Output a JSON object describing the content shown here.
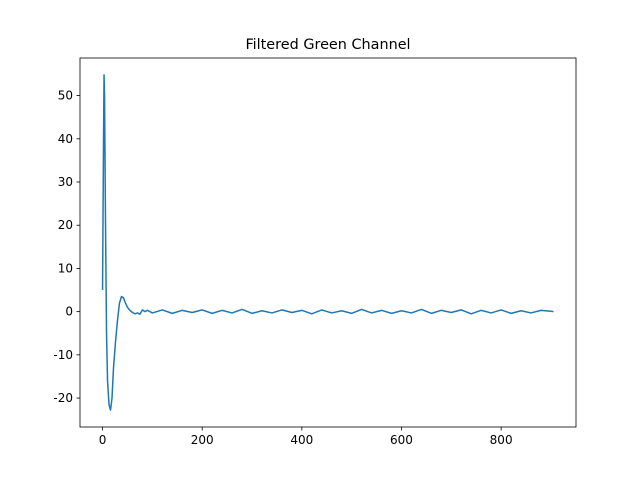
{
  "chart_data": {
    "type": "line",
    "title": "Filtered Green Channel",
    "series": [
      {
        "color": "#1f77b4",
        "x": [
          0,
          2,
          3,
          4,
          6,
          8,
          10,
          13,
          16,
          19,
          22,
          26,
          30,
          34,
          38,
          42,
          46,
          50,
          55,
          60,
          65,
          70,
          75,
          80,
          85,
          90,
          100,
          120,
          140,
          160,
          180,
          200,
          220,
          240,
          260,
          280,
          300,
          320,
          340,
          360,
          380,
          400,
          420,
          440,
          460,
          480,
          500,
          520,
          540,
          560,
          580,
          600,
          620,
          640,
          660,
          680,
          700,
          720,
          740,
          760,
          780,
          800,
          820,
          840,
          860,
          880,
          900,
          905
        ],
        "values": [
          5,
          40,
          54.8,
          50,
          20,
          -5,
          -16,
          -21.5,
          -22.8,
          -20,
          -13,
          -7,
          -2,
          2,
          3.5,
          3.2,
          2,
          1,
          0.3,
          -0.2,
          -0.5,
          -0.3,
          -0.6,
          0.4,
          0,
          0.3,
          -0.3,
          0.4,
          -0.4,
          0.3,
          -0.2,
          0.4,
          -0.4,
          0.3,
          -0.3,
          0.5,
          -0.4,
          0.2,
          -0.3,
          0.4,
          -0.2,
          0.3,
          -0.5,
          0.4,
          -0.3,
          0.2,
          -0.4,
          0.5,
          -0.3,
          0.3,
          -0.4,
          0.2,
          -0.3,
          0.5,
          -0.4,
          0.3,
          -0.2,
          0.4,
          -0.5,
          0.3,
          -0.3,
          0.4,
          -0.4,
          0.2,
          -0.3,
          0.3,
          0.1,
          0
        ]
      }
    ],
    "xlim": [
      -45.25,
      950.25
    ],
    "xticks": [
      0,
      200,
      400,
      600,
      800
    ],
    "ylim": [
      -26.7,
      58.7
    ],
    "yticks": [
      -20,
      -10,
      0,
      10,
      20,
      30,
      40,
      50
    ]
  }
}
